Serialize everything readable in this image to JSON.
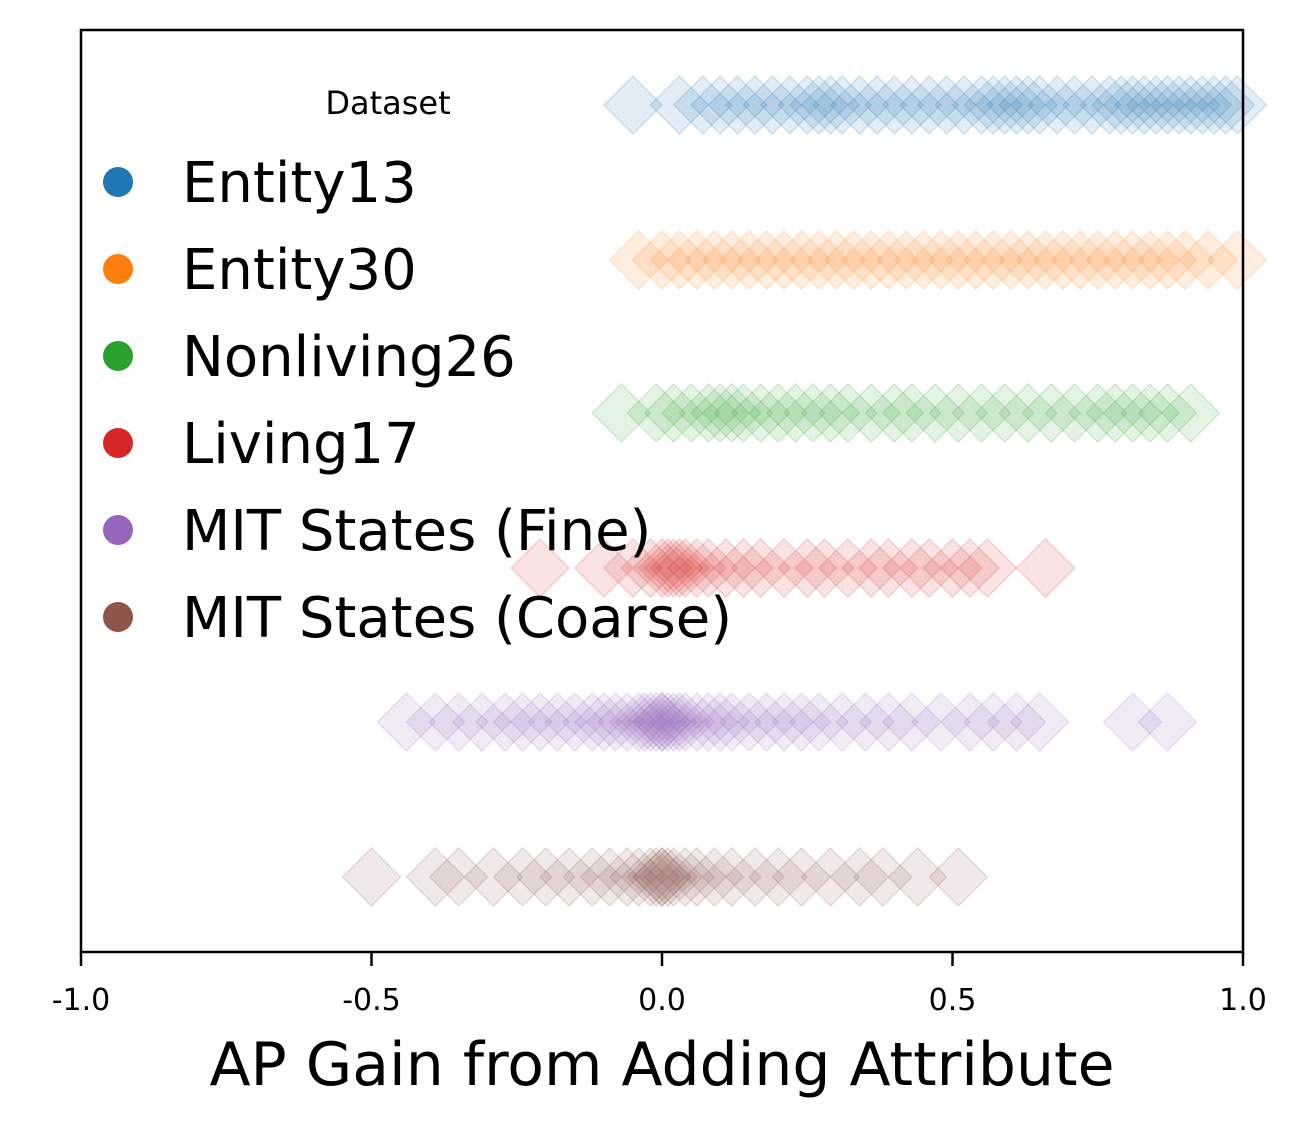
{
  "chart_data": {
    "type": "scatter",
    "subtype": "strip",
    "xlabel": "AP Gain from Adding Attribute",
    "ylabel": "",
    "xlim": [
      -1.0,
      1.0
    ],
    "xticks": [
      -1.0,
      -0.5,
      0.0,
      0.5,
      1.0
    ],
    "xtick_labels": [
      "-1.0",
      "-0.5",
      "0.0",
      "0.5",
      "1.0"
    ],
    "marker": "diamond",
    "legend": {
      "title": "Dataset",
      "placement": "upper-left",
      "entries": [
        "Entity13",
        "Entity30",
        "Nonliving26",
        "Living17",
        "MIT States (Fine)",
        "MIT States (Coarse)"
      ]
    },
    "series": [
      {
        "name": "Entity13",
        "color": "#1f77b4",
        "values": [
          -0.05,
          0.03,
          0.07,
          0.1,
          0.13,
          0.16,
          0.19,
          0.22,
          0.25,
          0.27,
          0.29,
          0.31,
          0.34,
          0.37,
          0.4,
          0.43,
          0.46,
          0.49,
          0.52,
          0.55,
          0.57,
          0.59,
          0.61,
          0.63,
          0.65,
          0.68,
          0.71,
          0.74,
          0.77,
          0.79,
          0.81,
          0.83,
          0.85,
          0.87,
          0.89,
          0.91,
          0.93,
          0.95,
          0.97,
          0.99
        ]
      },
      {
        "name": "Entity30",
        "color": "#ff7f0e",
        "values": [
          -0.04,
          0.0,
          0.03,
          0.06,
          0.09,
          0.12,
          0.15,
          0.18,
          0.21,
          0.24,
          0.27,
          0.3,
          0.33,
          0.36,
          0.39,
          0.42,
          0.45,
          0.48,
          0.51,
          0.54,
          0.57,
          0.6,
          0.63,
          0.66,
          0.69,
          0.72,
          0.75,
          0.78,
          0.81,
          0.84,
          0.87,
          0.9,
          0.94,
          0.99
        ]
      },
      {
        "name": "Nonliving26",
        "color": "#2ca02c",
        "values": [
          -0.07,
          -0.01,
          0.02,
          0.05,
          0.08,
          0.1,
          0.12,
          0.14,
          0.17,
          0.2,
          0.23,
          0.26,
          0.29,
          0.32,
          0.36,
          0.4,
          0.43,
          0.47,
          0.51,
          0.55,
          0.59,
          0.63,
          0.67,
          0.71,
          0.75,
          0.78,
          0.81,
          0.84,
          0.87,
          0.91
        ]
      },
      {
        "name": "Living17",
        "color": "#d62728",
        "values": [
          -0.21,
          -0.1,
          -0.05,
          -0.02,
          0.0,
          0.01,
          0.02,
          0.03,
          0.04,
          0.06,
          0.08,
          0.11,
          0.14,
          0.17,
          0.21,
          0.25,
          0.28,
          0.32,
          0.36,
          0.39,
          0.43,
          0.46,
          0.5,
          0.53,
          0.56,
          0.66
        ]
      },
      {
        "name": "MIT States (Fine)",
        "color": "#9467bd",
        "values": [
          -0.44,
          -0.39,
          -0.35,
          -0.31,
          -0.27,
          -0.24,
          -0.21,
          -0.18,
          -0.15,
          -0.12,
          -0.1,
          -0.08,
          -0.06,
          -0.04,
          -0.03,
          -0.02,
          -0.01,
          0.0,
          0.0,
          0.01,
          0.02,
          0.03,
          0.04,
          0.06,
          0.08,
          0.1,
          0.12,
          0.15,
          0.18,
          0.21,
          0.24,
          0.27,
          0.31,
          0.35,
          0.39,
          0.43,
          0.48,
          0.53,
          0.57,
          0.61,
          0.65,
          0.81,
          0.87
        ]
      },
      {
        "name": "MIT States (Coarse)",
        "color": "#8c564b",
        "values": [
          -0.5,
          -0.39,
          -0.35,
          -0.29,
          -0.24,
          -0.2,
          -0.16,
          -0.12,
          -0.09,
          -0.06,
          -0.04,
          -0.02,
          -0.01,
          0.0,
          0.0,
          0.01,
          0.02,
          0.04,
          0.06,
          0.09,
          0.12,
          0.16,
          0.2,
          0.24,
          0.29,
          0.34,
          0.38,
          0.44,
          0.51
        ]
      }
    ]
  }
}
